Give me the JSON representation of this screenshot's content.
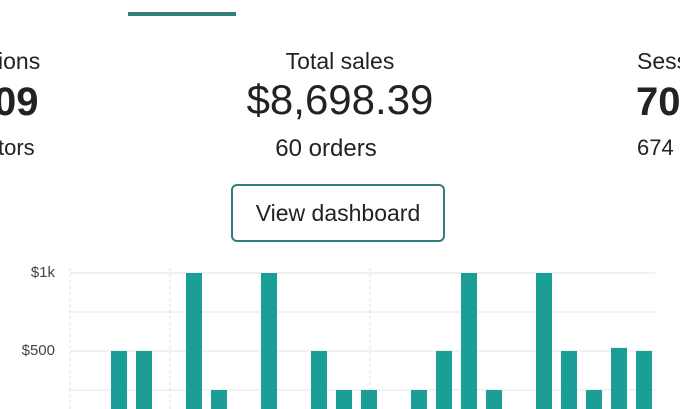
{
  "stats": [
    {
      "label": "ions",
      "value": "09",
      "sub": "tors"
    },
    {
      "label": "Total sales",
      "value": "$8,698.39",
      "sub": "60 orders"
    },
    {
      "label": "Sess",
      "value": "70",
      "sub": "674"
    }
  ],
  "button": "View dashboard",
  "chart": {
    "type": "bar",
    "color": "#1a9e96",
    "categories": [
      null,
      null,
      null,
      null,
      null,
      null,
      null,
      null,
      null,
      null,
      null,
      null,
      null,
      null,
      null,
      null,
      null,
      null,
      null,
      null,
      null,
      null,
      null
    ],
    "values": [
      0,
      500,
      500,
      0,
      1000,
      250,
      0,
      1000,
      0,
      500,
      250,
      250,
      0,
      250,
      500,
      1000,
      250,
      0,
      1000,
      500,
      250,
      520,
      500
    ],
    "ylim": [
      0,
      1000
    ],
    "yticks": [
      {
        "value": 1000,
        "label": "$1k"
      },
      {
        "value": 500,
        "label": "$500"
      }
    ],
    "grid": true
  }
}
